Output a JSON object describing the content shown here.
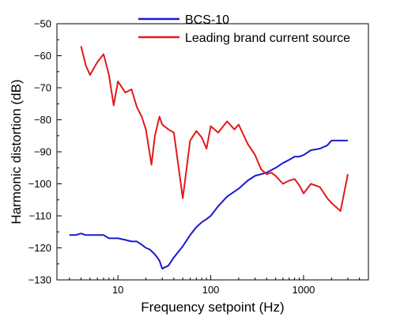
{
  "chart_data": {
    "type": "line",
    "xlabel": "Frequency setpoint (Hz)",
    "ylabel": "Harmonic distortion (dB)",
    "x_scale": "log",
    "xlim": [
      2.2,
      5000
    ],
    "ylim": [
      -130,
      -50
    ],
    "x_ticks": [
      10,
      100,
      1000
    ],
    "x_tick_labels": [
      "10",
      "100",
      "1000"
    ],
    "y_ticks": [
      -130,
      -120,
      -110,
      -100,
      -90,
      -80,
      -70,
      -60,
      -50
    ],
    "y_tick_labels": [
      "-130",
      "-120",
      "-110",
      "-100",
      "-90",
      "-80",
      "-70",
      "-60",
      "-50"
    ],
    "grid": false,
    "legend_position": "top-center",
    "series": [
      {
        "name": "BCS-10",
        "color": "#1a1acc",
        "x": [
          3,
          3.5,
          4,
          4.5,
          5,
          6,
          7,
          8,
          9,
          10,
          12,
          14,
          16,
          18,
          20,
          22,
          25,
          28,
          30,
          35,
          40,
          50,
          60,
          70,
          80,
          90,
          100,
          120,
          150,
          200,
          250,
          300,
          400,
          500,
          600,
          700,
          800,
          900,
          1000,
          1200,
          1500,
          1800,
          2000,
          2500,
          3000
        ],
        "values": [
          -116,
          -116,
          -115.5,
          -116,
          -116,
          -116,
          -116,
          -117,
          -117,
          -117,
          -117.5,
          -118,
          -118,
          -119,
          -120,
          -120.5,
          -122,
          -124,
          -126.5,
          -125.5,
          -123,
          -119.5,
          -116,
          -113.5,
          -112,
          -111,
          -110,
          -107,
          -104,
          -101.5,
          -99,
          -97.5,
          -96.5,
          -95,
          -93.5,
          -92.5,
          -91.5,
          -91.5,
          -91,
          -89.5,
          -89,
          -88,
          -86.5,
          -86.5,
          -86.5
        ]
      },
      {
        "name": "Leading brand current source",
        "color": "#e21a1a",
        "x": [
          4,
          4.5,
          5,
          6,
          7,
          8,
          9,
          10,
          12,
          14,
          16,
          18,
          20,
          23,
          25,
          28,
          30,
          35,
          40,
          50,
          60,
          70,
          80,
          90,
          100,
          120,
          150,
          180,
          200,
          250,
          300,
          350,
          400,
          450,
          500,
          600,
          700,
          800,
          900,
          1000,
          1200,
          1500,
          1800,
          2000,
          2500,
          3000
        ],
        "values": [
          -57,
          -63,
          -66,
          -62,
          -59.5,
          -66,
          -75.5,
          -68,
          -71.5,
          -70.5,
          -76,
          -79,
          -83,
          -94,
          -85,
          -79,
          -81.5,
          -83,
          -84,
          -104.5,
          -86.5,
          -83.5,
          -85.5,
          -89,
          -82,
          -84,
          -80.5,
          -83,
          -81.5,
          -87.5,
          -91,
          -95.5,
          -97,
          -96.5,
          -97.5,
          -100,
          -99,
          -98.5,
          -100.5,
          -103,
          -100,
          -101,
          -104.5,
          -106,
          -108.5,
          -97
        ]
      }
    ]
  }
}
